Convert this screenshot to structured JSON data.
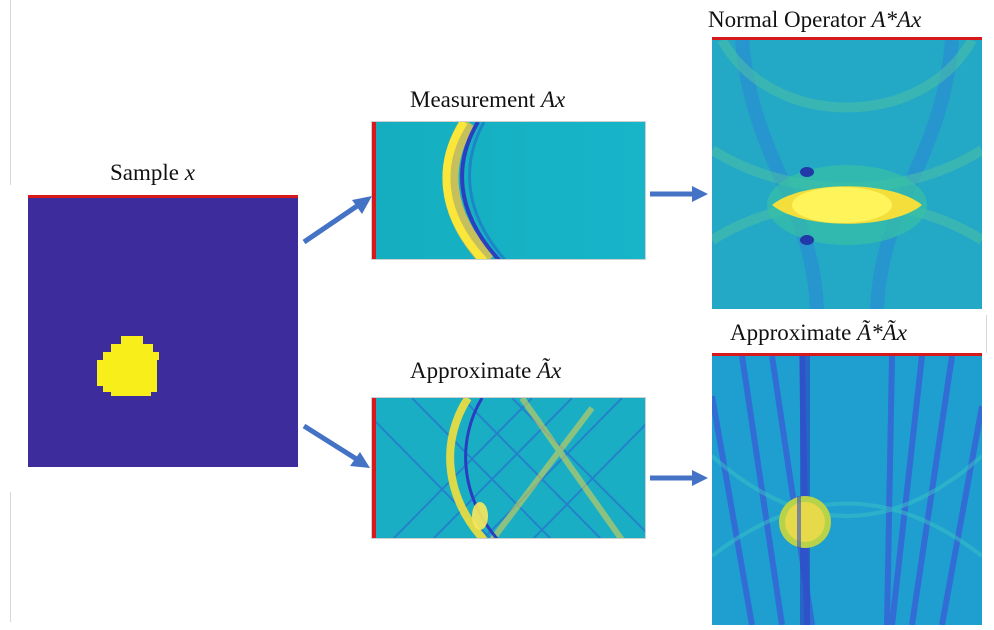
{
  "panels": {
    "sample": {
      "title": "Sample ",
      "math": "x"
    },
    "measurement": {
      "title": "Measurement ",
      "math": "Ax"
    },
    "approx_measurement": {
      "title": "Approximate ",
      "math": "Ãx"
    },
    "normal_operator": {
      "title": "Normal Operator ",
      "math": "A*Ax"
    },
    "approx_normal": {
      "title": "Approximate ",
      "math": "Ã*Ãx"
    }
  },
  "colors": {
    "accent_red": "#d7191c",
    "arrow_blue": "#4472c4",
    "dark_blue": "#3a2a99",
    "cyan": "#14b3c4",
    "yellow": "#f6ec1d"
  }
}
